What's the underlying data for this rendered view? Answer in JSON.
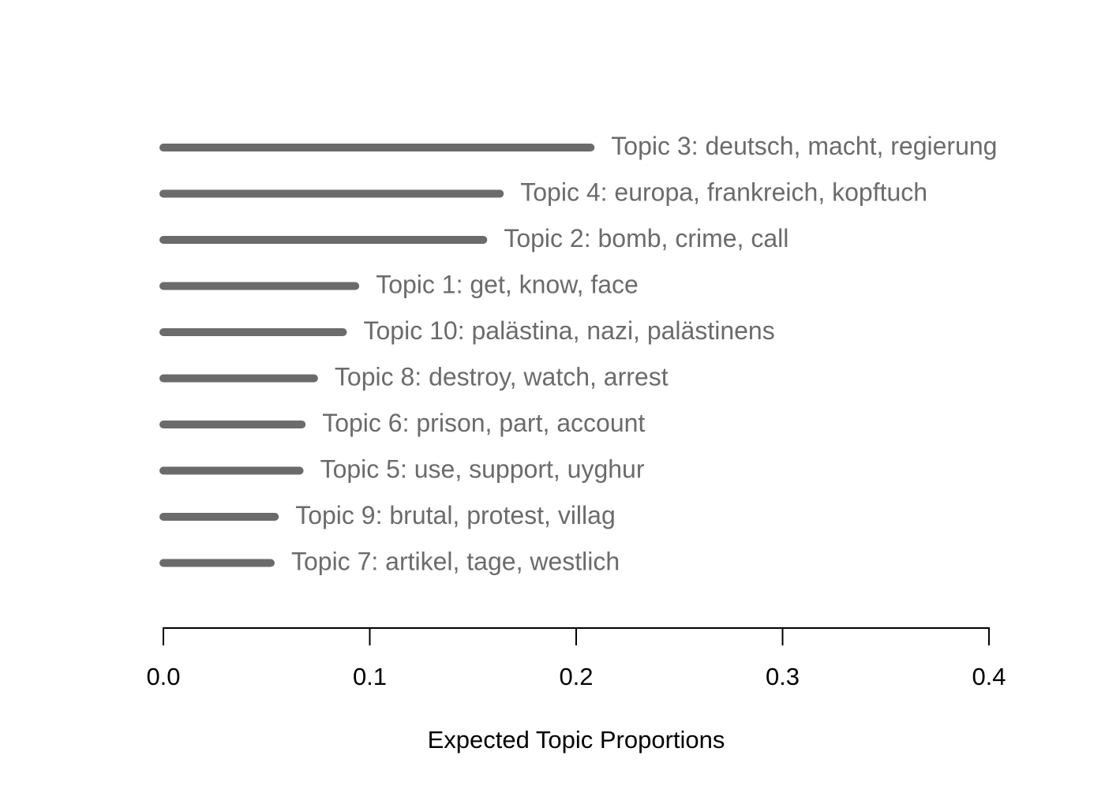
{
  "chart_data": {
    "type": "bar",
    "orientation": "horizontal",
    "xlabel": "Expected Topic Proportions",
    "ylabel": "",
    "xlim": [
      0,
      0.4
    ],
    "ticks": [
      0.0,
      0.1,
      0.2,
      0.3,
      0.4
    ],
    "tick_labels": [
      "0.0",
      "0.1",
      "0.2",
      "0.3",
      "0.4"
    ],
    "grid": false,
    "bar_color": "#6b6b6b",
    "label_color": "#6b6b6b",
    "axis_color": "#000000",
    "categories": [
      "Topic 3: deutsch, macht, regierung",
      "Topic 4: europa, frankreich, kopftuch",
      "Topic 2: bomb, crime, call",
      "Topic 1: get, know, face",
      "Topic 10: palästina, nazi, palästinens",
      "Topic 8: destroy, watch, arrest",
      "Topic 6: prison, part, account",
      "Topic 5: use, support, uyghur",
      "Topic 9: brutal, protest, villag",
      "Topic 7: artikel, tage, westlich"
    ],
    "values": [
      0.207,
      0.163,
      0.155,
      0.093,
      0.087,
      0.073,
      0.067,
      0.066,
      0.054,
      0.052
    ]
  }
}
